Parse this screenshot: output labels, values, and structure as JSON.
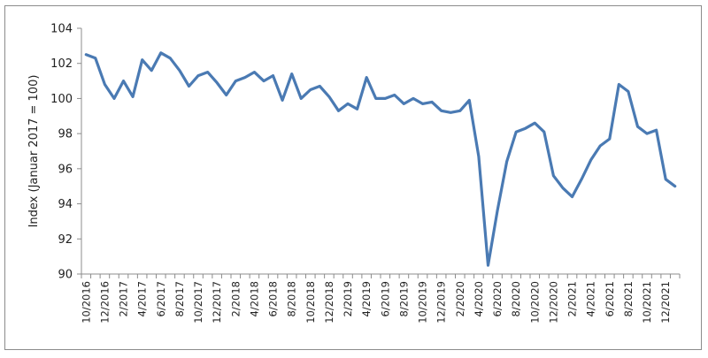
{
  "chart_data": {
    "type": "line",
    "title": "",
    "xlabel": "",
    "ylabel": "Index (Januar 2017 = 100)",
    "ylim": [
      90,
      104
    ],
    "yticks": [
      90,
      92,
      94,
      96,
      98,
      100,
      102,
      104
    ],
    "grid": false,
    "legend": "none",
    "colors": {
      "line": "#4a7ab3",
      "axis": "#8c8c8c",
      "text": "#222222"
    },
    "x": [
      "10/2016",
      "11/2016",
      "12/2016",
      "1/2017",
      "2/2017",
      "3/2017",
      "4/2017",
      "5/2017",
      "6/2017",
      "7/2017",
      "8/2017",
      "9/2017",
      "10/2017",
      "11/2017",
      "12/2017",
      "1/2018",
      "2/2018",
      "3/2018",
      "4/2018",
      "5/2018",
      "6/2018",
      "7/2018",
      "8/2018",
      "9/2018",
      "10/2018",
      "11/2018",
      "12/2018",
      "1/2019",
      "2/2019",
      "3/2019",
      "4/2019",
      "5/2019",
      "6/2019",
      "7/2019",
      "8/2019",
      "9/2019",
      "10/2019",
      "11/2019",
      "12/2019",
      "1/2020",
      "2/2020",
      "3/2020",
      "4/2020",
      "5/2020",
      "6/2020",
      "7/2020",
      "8/2020",
      "9/2020",
      "10/2020",
      "11/2020",
      "12/2020",
      "1/2021",
      "2/2021",
      "3/2021",
      "4/2021",
      "5/2021",
      "6/2021",
      "7/2021",
      "8/2021",
      "9/2021",
      "10/2021",
      "11/2021",
      "12/2021",
      "1/2022"
    ],
    "x_tick_labels": [
      "10/2016",
      "12/2016",
      "2/2017",
      "4/2017",
      "6/2017",
      "8/2017",
      "10/2017",
      "12/2017",
      "2/2018",
      "4/2018",
      "6/2018",
      "8/2018",
      "10/2018",
      "12/2018",
      "2/2019",
      "4/2019",
      "6/2019",
      "8/2019",
      "10/2019",
      "12/2019",
      "2/2020",
      "4/2020",
      "6/2020",
      "8/2020",
      "10/2020",
      "12/2020",
      "2/2021",
      "4/2021",
      "6/2021",
      "8/2021",
      "10/2021",
      "12/2021"
    ],
    "series": [
      {
        "values": [
          102.5,
          102.3,
          100.8,
          100.0,
          101.0,
          100.1,
          102.2,
          101.6,
          102.6,
          102.3,
          101.6,
          100.7,
          101.3,
          101.5,
          100.9,
          100.2,
          101.0,
          101.2,
          101.5,
          101.0,
          101.3,
          99.9,
          101.4,
          100.0,
          100.5,
          100.7,
          100.1,
          99.3,
          99.7,
          99.4,
          101.2,
          100.0,
          100.0,
          100.2,
          99.7,
          100.0,
          99.7,
          99.8,
          99.3,
          99.2,
          99.3,
          99.9,
          96.7,
          90.5,
          93.6,
          96.4,
          98.1,
          98.3,
          98.6,
          98.1,
          95.6,
          94.9,
          94.4,
          95.4,
          96.5,
          97.3,
          97.7,
          100.8,
          100.4,
          98.4,
          98.0,
          98.2,
          95.4,
          95.0
        ]
      }
    ]
  }
}
